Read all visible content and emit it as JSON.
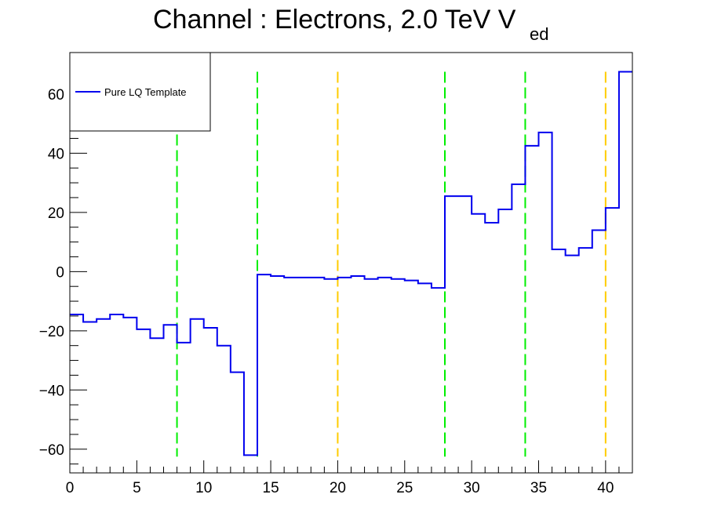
{
  "chart_data": {
    "type": "line",
    "title": "Channel : Electrons, 2.0 TeV V",
    "title_subscript": "ed",
    "xlabel": "",
    "ylabel": "",
    "xlim": [
      0,
      42
    ],
    "ylim": [
      -68,
      74
    ],
    "x_ticks": [
      0,
      5,
      10,
      15,
      20,
      25,
      30,
      35,
      40
    ],
    "y_ticks": [
      -60,
      -40,
      -20,
      0,
      20,
      40,
      60
    ],
    "grid": false,
    "legend": {
      "position": "top-left",
      "entries": [
        "Pure LQ Template"
      ]
    },
    "series": [
      {
        "name": "Pure LQ Template",
        "color": "#0000ee",
        "style": "step",
        "bin_edges": [
          0,
          1,
          2,
          3,
          4,
          5,
          6,
          7,
          8,
          9,
          10,
          11,
          12,
          13,
          14,
          15,
          16,
          17,
          18,
          19,
          20,
          21,
          22,
          23,
          24,
          25,
          26,
          27,
          28,
          29,
          30,
          31,
          32,
          33,
          34,
          35,
          36,
          37,
          38,
          39,
          40,
          41,
          42
        ],
        "values": [
          -14.5,
          -17,
          -16,
          -14.5,
          -15.5,
          -19.5,
          -22.5,
          -18,
          -24,
          -16,
          -19,
          -25,
          -34,
          -62,
          -1,
          -1.5,
          -2,
          -2,
          -2,
          -2.5,
          -2,
          -1.5,
          -2.5,
          -2,
          -2.5,
          -3,
          -4,
          -5.5,
          25.5,
          25.5,
          19.5,
          16.5,
          21,
          29.5,
          42.5,
          47,
          7.5,
          5.5,
          8,
          14,
          21.5,
          67.5
        ]
      }
    ],
    "vertical_lines": [
      {
        "x": 8,
        "color": "#00ee00",
        "style": "dashed"
      },
      {
        "x": 14,
        "color": "#00ee00",
        "style": "dashed"
      },
      {
        "x": 20,
        "color": "#ffcc00",
        "style": "dashed"
      },
      {
        "x": 28,
        "color": "#00ee00",
        "style": "dashed"
      },
      {
        "x": 34,
        "color": "#00ee00",
        "style": "dashed"
      },
      {
        "x": 40,
        "color": "#ffcc00",
        "style": "dashed"
      }
    ],
    "vertical_line_range": [
      -62.5,
      67.5
    ]
  }
}
